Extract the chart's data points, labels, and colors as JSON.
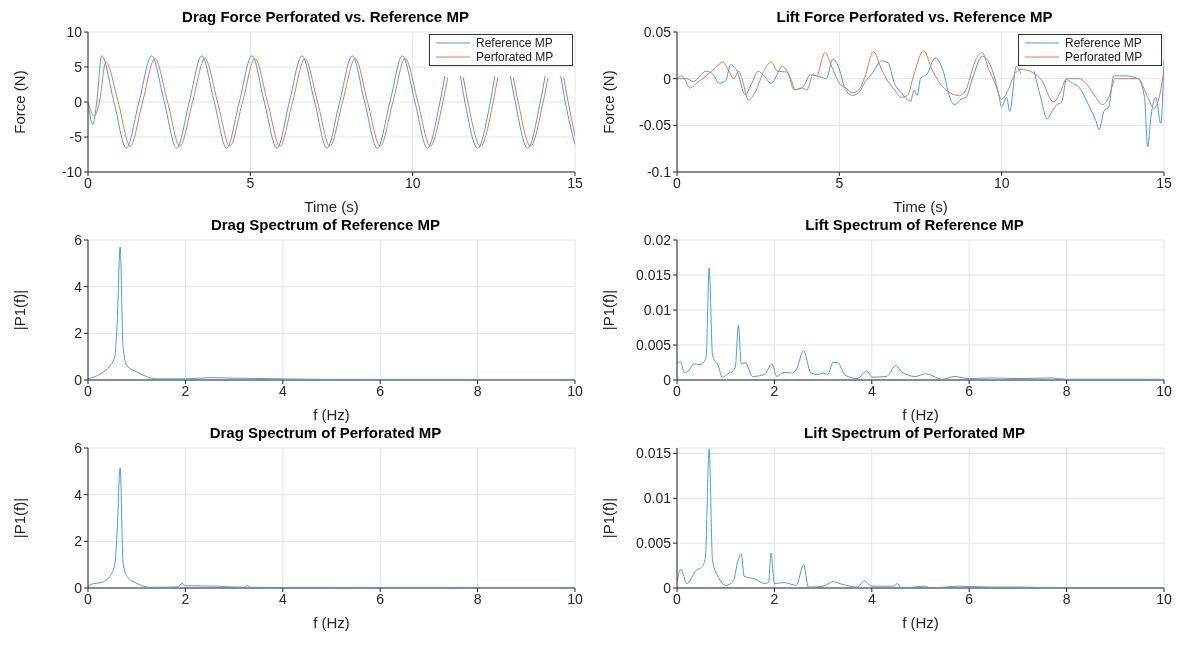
{
  "chart_data": [
    {
      "type": "line",
      "title": "Drag Force Perforated vs. Reference MP",
      "xlabel": "Time (s)",
      "ylabel": "Force (N)",
      "xlim": [
        0,
        15
      ],
      "xticks": [
        0,
        5,
        10,
        15
      ],
      "ylim": [
        -10,
        10
      ],
      "yticks": [
        -10,
        -5,
        0,
        5,
        10
      ],
      "grid": true,
      "legend": "top right",
      "series": [
        {
          "name": "Reference MP",
          "color": "#4a9fd8",
          "x": [
            0,
            0.15,
            0.27,
            0.42,
            0.8,
            1.18,
            1.57,
            1.96,
            2.35,
            2.73,
            3.12,
            3.5,
            3.89,
            4.27,
            4.66,
            5.05,
            5.43,
            5.82,
            6.2,
            6.59,
            6.98,
            7.36,
            7.75,
            8.14,
            8.52,
            8.91,
            9.3,
            9.68,
            10.07,
            10.45,
            10.84,
            10.99,
            11.23,
            11.47,
            11.61,
            12.0,
            12.39,
            12.53,
            12.77,
            13.01,
            13.16,
            13.54,
            13.93,
            14.08,
            14.32,
            14.56,
            14.7,
            15
          ],
          "values": [
            0,
            -3.2,
            0,
            6.6,
            0,
            -6.6,
            0,
            6.6,
            0,
            -6.6,
            0,
            6.6,
            0,
            -6.6,
            0,
            6.6,
            0,
            -6.6,
            0,
            6.6,
            0,
            -6.6,
            0,
            6.6,
            0,
            -6.6,
            0,
            6.6,
            0,
            -6.6,
            0,
            3.7,
            null,
            3.7,
            0,
            -6.6,
            0,
            3.7,
            null,
            3.7,
            0,
            -6.6,
            0,
            3.7,
            null,
            3.7,
            0,
            -6.1
          ]
        },
        {
          "name": "Perforated MP",
          "color": "#e07b54",
          "x": [
            0,
            0.2,
            0.35,
            0.55,
            0.93,
            1.3,
            1.68,
            2.06,
            2.45,
            2.83,
            3.22,
            3.6,
            3.99,
            4.37,
            4.76,
            5.14,
            5.53,
            5.91,
            6.3,
            6.68,
            7.07,
            7.45,
            7.84,
            8.23,
            8.61,
            9.0,
            9.39,
            9.77,
            10.16,
            10.54,
            10.93,
            11.08,
            11.32,
            11.56,
            11.7,
            12.09,
            12.48,
            12.62,
            12.86,
            13.1,
            13.25,
            13.63,
            14.02,
            14.17,
            14.41,
            14.65,
            14.79,
            15
          ],
          "values": [
            0,
            -2,
            0,
            5.7,
            0,
            -6.3,
            0,
            6.2,
            0,
            -6.3,
            0,
            6.2,
            0,
            -6.3,
            0,
            6.2,
            0,
            -6.3,
            0,
            6.2,
            0,
            -6.3,
            0,
            6.2,
            0,
            -6.3,
            0,
            6.2,
            0,
            -6.3,
            0,
            3.5,
            null,
            3.5,
            0,
            -6.3,
            0,
            3.5,
            null,
            3.5,
            0,
            -6.3,
            0,
            3.5,
            null,
            3.5,
            0,
            -4.9
          ]
        }
      ]
    },
    {
      "type": "line",
      "title": "Lift Force Perforated vs. Reference MP",
      "xlabel": "Time (s)",
      "ylabel": "Force (N)",
      "xlim": [
        0,
        15
      ],
      "xticks": [
        0,
        5,
        10,
        15
      ],
      "ylim": [
        -0.1,
        0.05
      ],
      "yticks": [
        -0.1,
        -0.05,
        0,
        0.05
      ],
      "grid": true,
      "legend": "top right",
      "series": [
        {
          "name": "Reference MP",
          "color": "#4a9fd8",
          "x": [
            0,
            0.3,
            0.5,
            0.9,
            1.1,
            1.3,
            1.5,
            1.65,
            1.85,
            2.1,
            2.3,
            2.5,
            2.7,
            2.9,
            3.25,
            3.5,
            3.65,
            3.9,
            4.1,
            4.4,
            4.6,
            4.8,
            5.0,
            5.15,
            5.4,
            5.6,
            5.8,
            6.0,
            6.3,
            6.5,
            6.7,
            6.9,
            7.2,
            7.3,
            7.4,
            7.5,
            7.7,
            7.95,
            8.2,
            8.4,
            8.55,
            8.75,
            8.9,
            9.1,
            9.4,
            9.6,
            9.75,
            9.9,
            10.0,
            10.15,
            10.25,
            10.45,
            10.6,
            10.8,
            11.0,
            11.2,
            11.4,
            11.55,
            11.7,
            11.85,
            12.0,
            12.1,
            12.4,
            12.7,
            12.9,
            13.0,
            13.15,
            13.3,
            13.45,
            13.8,
            14.2,
            14.4,
            14.5,
            14.6,
            14.75,
            14.9,
            15
          ],
          "values": [
            0,
            0,
            -0.003,
            0.008,
            0.005,
            -0.005,
            -0.002,
            0.015,
            0.008,
            -0.017,
            -0.005,
            0.008,
            0.002,
            -0.005,
            0.013,
            0,
            -0.012,
            -0.008,
            0.004,
            0.002,
            0,
            0.021,
            0.01,
            -0.008,
            -0.018,
            -0.015,
            -0.003,
            0.005,
            0.019,
            0.017,
            -0.005,
            -0.015,
            -0.024,
            -0.012,
            -0.018,
            0,
            0.005,
            0.022,
            0.008,
            -0.02,
            -0.028,
            -0.022,
            -0.02,
            0,
            0.024,
            0.018,
            0.005,
            -0.015,
            -0.03,
            -0.02,
            -0.035,
            0.013,
            0.005,
            null,
            0.008,
            -0.02,
            -0.043,
            -0.035,
            -0.028,
            -0.025,
            0,
            -0.003,
            -0.01,
            -0.03,
            -0.045,
            -0.055,
            -0.035,
            -0.03,
            0.003,
            0.003,
            0,
            -0.02,
            -0.073,
            -0.04,
            -0.02,
            -0.048,
            0.02
          ]
        },
        {
          "name": "Perforated MP",
          "color": "#e07b54",
          "x": [
            0,
            0.15,
            0.4,
            0.6,
            0.9,
            1.2,
            1.4,
            1.6,
            1.75,
            1.9,
            2.0,
            2.2,
            2.4,
            2.7,
            2.9,
            3.1,
            3.4,
            3.6,
            3.85,
            4.0,
            4.2,
            4.3,
            4.55,
            4.8,
            5.0,
            5.2,
            5.4,
            5.6,
            5.8,
            6.05,
            6.3,
            6.5,
            6.7,
            6.9,
            7.1,
            7.3,
            7.6,
            7.85,
            8.1,
            8.4,
            8.7,
            8.9,
            9.1,
            9.2,
            9.4,
            9.6,
            9.8,
            10.0,
            10.2,
            10.4,
            10.6,
            11.2,
            11.6,
            11.8,
            12.0,
            12.4,
            12.6,
            12.9,
            13.1,
            13.3,
            13.5,
            13.9,
            14.2,
            14.5,
            14.7,
            14.85,
            15
          ],
          "values": [
            0,
            0.003,
            -0.01,
            -0.005,
            0.003,
            0.012,
            0.018,
            0.008,
            0,
            0.008,
            0,
            -0.023,
            -0.015,
            0.01,
            0.018,
            0.008,
            0.007,
            -0.012,
            -0.01,
            -0.012,
            0.005,
            0.003,
            0.028,
            0.01,
            -0.005,
            -0.01,
            -0.015,
            -0.012,
            0.003,
            0.029,
            0.01,
            -0.003,
            -0.012,
            -0.02,
            -0.018,
            0.005,
            0.03,
            0.01,
            -0.005,
            -0.015,
            -0.018,
            -0.012,
            0.01,
            0.02,
            0.028,
            0.01,
            -0.005,
            -0.022,
            -0.012,
            0.005,
            0.01,
            0,
            -0.025,
            -0.015,
            0,
            0,
            -0.005,
            -0.02,
            -0.028,
            -0.02,
            0,
            0,
            0,
            -0.02,
            -0.032,
            -0.02,
            0.01
          ]
        }
      ]
    },
    {
      "type": "line",
      "title": "Drag Spectrum of Reference MP",
      "xlabel": "f (Hz)",
      "ylabel": "|P1(f)|",
      "xlim": [
        0,
        10
      ],
      "xticks": [
        0,
        2,
        4,
        6,
        8,
        10
      ],
      "ylim": [
        0,
        6
      ],
      "yticks": [
        0,
        2,
        4,
        6
      ],
      "grid": true,
      "series": [
        {
          "color": "#4a9fd8",
          "x": [
            0,
            0.2,
            0.35,
            0.45,
            0.55,
            0.6,
            0.66,
            0.72,
            0.8,
            1.0,
            1.2,
            1.4,
            2.0,
            2.5,
            3.0,
            4.0,
            5.0,
            10
          ],
          "values": [
            0.05,
            0.2,
            0.4,
            0.6,
            1.0,
            2.5,
            5.7,
            1.4,
            0.6,
            0.35,
            0.15,
            0.05,
            0.05,
            0.1,
            0.08,
            0.05,
            0.02,
            0.01
          ]
        }
      ]
    },
    {
      "type": "line",
      "title": "Lift Spectrum of Reference MP",
      "xlabel": "f (Hz)",
      "ylabel": "|P1(f)|",
      "xlim": [
        0,
        10
      ],
      "xticks": [
        0,
        2,
        4,
        6,
        8,
        10
      ],
      "ylim": [
        0,
        0.02
      ],
      "yticks": [
        0,
        0.005,
        0.01,
        0.015,
        0.02
      ],
      "grid": true,
      "series": [
        {
          "color": "#4a9fd8",
          "x": [
            0,
            0.07,
            0.15,
            0.22,
            0.35,
            0.45,
            0.55,
            0.6,
            0.66,
            0.73,
            0.85,
            0.93,
            1.05,
            1.15,
            1.2,
            1.26,
            1.32,
            1.4,
            1.55,
            1.8,
            1.95,
            2.05,
            2.2,
            2.35,
            2.45,
            2.6,
            2.75,
            2.9,
            3.0,
            3.1,
            3.2,
            3.3,
            3.45,
            3.7,
            3.9,
            4.0,
            4.3,
            4.5,
            4.6,
            4.9,
            5.0,
            5.1,
            5.45,
            5.7,
            6.0,
            6.5,
            7.0,
            7.7,
            8.0,
            9.0,
            10
          ],
          "values": [
            0.0023,
            0.0026,
            0.0011,
            0.0012,
            0.0023,
            0.0022,
            0.0025,
            0.0035,
            0.016,
            0.0035,
            0.002,
            0.0004,
            0.0009,
            0.0013,
            0.002,
            0.0078,
            0.0023,
            0.0025,
            0.0005,
            0.0008,
            0.0023,
            0.0005,
            0.0011,
            0.001,
            0.0015,
            0.0042,
            0.001,
            0.0008,
            0.001,
            0.0008,
            0.0025,
            0.0025,
            0.0007,
            0.0002,
            0.0013,
            0.0004,
            0.0005,
            0.0021,
            0.0012,
            0.0005,
            0.0007,
            0.0009,
            0.0001,
            0.0005,
            0.0002,
            0.0003,
            0.0002,
            0.0003,
            0.0001,
            0.0001,
            0.0001
          ]
        }
      ]
    },
    {
      "type": "line",
      "title": "Drag Spectrum of Perforated MP",
      "xlabel": "f (Hz)",
      "ylabel": "|P1(f)|",
      "xlim": [
        0,
        10
      ],
      "xticks": [
        0,
        2,
        4,
        6,
        8,
        10
      ],
      "ylim": [
        0,
        6
      ],
      "yticks": [
        0,
        2,
        4,
        6
      ],
      "grid": true,
      "series": [
        {
          "color": "#4a9fd8",
          "x": [
            0,
            0.05,
            0.3,
            0.45,
            0.55,
            0.6,
            0.66,
            0.72,
            0.8,
            1.0,
            1.3,
            1.85,
            1.93,
            2.0,
            2.6,
            3.2,
            3.27,
            3.35,
            4.0,
            10
          ],
          "values": [
            0.05,
            0.15,
            0.25,
            0.5,
            1.0,
            2.5,
            5.15,
            1.1,
            0.5,
            0.2,
            0.03,
            0.05,
            0.2,
            0.1,
            0.08,
            0.03,
            0.1,
            0.03,
            0.02,
            0.01
          ]
        }
      ]
    },
    {
      "type": "line",
      "title": "Lift Spectrum of Perforated MP",
      "xlabel": "f (Hz)",
      "ylabel": "|P1(f)|",
      "xlim": [
        0,
        10
      ],
      "xticks": [
        0,
        2,
        4,
        6,
        8,
        10
      ],
      "ylim": [
        0,
        0.0156
      ],
      "yticks": [
        0,
        0.005,
        0.01,
        0.015
      ],
      "grid": true,
      "series": [
        {
          "color": "#4a9fd8",
          "x": [
            0,
            0.08,
            0.2,
            0.4,
            0.5,
            0.58,
            0.66,
            0.73,
            0.85,
            1.0,
            1.15,
            1.25,
            1.32,
            1.38,
            1.6,
            1.8,
            1.88,
            1.93,
            2.0,
            2.2,
            2.45,
            2.6,
            2.7,
            3.0,
            3.2,
            3.4,
            3.7,
            3.85,
            4.0,
            4.45,
            4.52,
            4.6,
            5.1,
            5.2,
            5.8,
            6.5,
            7.1,
            8,
            10
          ],
          "values": [
            0.0008,
            0.0021,
            0.0005,
            0.002,
            0.0023,
            0.0032,
            0.0155,
            0.003,
            0.0012,
            0.0003,
            0.0007,
            0.003,
            0.0038,
            0.0013,
            0.001,
            0.0005,
            0.0006,
            0.0039,
            0.0005,
            0.0006,
            0.0003,
            0.0026,
            0.0001,
            0.0002,
            0.0007,
            0.0004,
            0.0001,
            0.0008,
            0.0002,
            0.0002,
            0.0005,
            0,
            0.0002,
            0,
            0.0002,
            0.0001,
            0.0001,
            0,
            0
          ]
        }
      ]
    }
  ]
}
